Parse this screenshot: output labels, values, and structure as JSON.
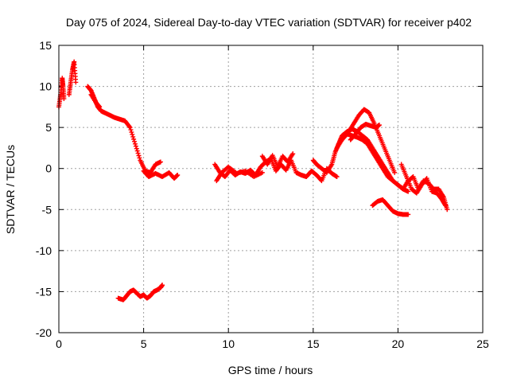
{
  "chart_data": {
    "type": "scatter",
    "title": "Day 075 of 2024, Sidereal Day-to-day VTEC variation (SDTVAR) for receiver p402",
    "xlabel": "GPS time / hours",
    "ylabel": "SDTVAR / TECUs",
    "xlim": [
      0,
      25
    ],
    "ylim": [
      -20,
      15
    ],
    "xticks": [
      0,
      5,
      10,
      15,
      20,
      25
    ],
    "xtick_labels": [
      "0",
      "5",
      "10",
      "15",
      "20",
      "25"
    ],
    "yticks": [
      -20,
      -15,
      -10,
      -5,
      0,
      5,
      10,
      15
    ],
    "ytick_labels": [
      "-20",
      "-15",
      "-10",
      "-5",
      "0",
      "5",
      "10",
      "15"
    ],
    "grid": true,
    "marker": "+",
    "series": [
      {
        "name": "SDTVAR",
        "color": "#ff0000",
        "tracks": [
          {
            "x": [
              0.0,
              0.1,
              0.2,
              0.25,
              0.3
            ],
            "y": [
              7.5,
              9.0,
              11.0,
              10.0,
              8.5
            ]
          },
          {
            "x": [
              0.6,
              0.7,
              0.8,
              0.9,
              1.0
            ],
            "y": [
              9.0,
              10.5,
              12.0,
              13.0,
              10.5
            ]
          },
          {
            "x": [
              1.7,
              1.9,
              2.1,
              2.3,
              2.5,
              2.7,
              3.0,
              3.3,
              3.6,
              3.9,
              4.2,
              4.5,
              4.8,
              5.1,
              5.4,
              5.7,
              6.0
            ],
            "y": [
              10.0,
              9.5,
              8.5,
              7.5,
              7.0,
              6.8,
              6.5,
              6.2,
              6.0,
              5.8,
              5.0,
              3.0,
              1.0,
              -0.3,
              -0.5,
              0.5,
              0.8
            ]
          },
          {
            "x": [
              1.9,
              2.2,
              2.4
            ],
            "y": [
              9.0,
              8.0,
              7.5
            ]
          },
          {
            "x": [
              5.0,
              5.3,
              5.7,
              6.1,
              6.5,
              6.8,
              7.0
            ],
            "y": [
              -0.3,
              -1.0,
              -0.6,
              -1.0,
              -0.5,
              -1.2,
              -0.8
            ]
          },
          {
            "x": [
              3.5,
              3.8,
              4.0,
              4.2,
              4.4,
              4.6,
              4.8,
              5.0,
              5.2,
              5.4,
              5.6,
              5.8,
              6.0,
              6.1
            ],
            "y": [
              -15.8,
              -16.0,
              -15.5,
              -15.0,
              -14.8,
              -15.2,
              -15.6,
              -15.4,
              -15.8,
              -15.5,
              -15.0,
              -14.8,
              -14.5,
              -14.2
            ]
          },
          {
            "x": [
              9.2,
              9.5,
              9.8,
              10.1,
              10.4,
              10.7,
              11.0,
              11.3,
              11.6,
              11.9,
              12.2,
              12.5,
              12.8,
              13.1,
              13.4,
              13.7,
              14.0,
              14.3,
              14.6,
              14.9,
              15.2,
              15.5,
              15.8,
              16.1,
              16.4
            ],
            "y": [
              0.5,
              -0.5,
              -1.0,
              -0.2,
              -0.8,
              -0.4,
              -0.6,
              -0.2,
              -0.8,
              0.2,
              0.8,
              1.2,
              -0.3,
              0.5,
              -0.2,
              1.0,
              -0.5,
              -0.8,
              -1.0,
              -0.3,
              -0.8,
              -1.5,
              0.0,
              -0.6,
              -1.0
            ]
          },
          {
            "x": [
              9.3,
              9.6,
              10.0,
              10.5,
              11.0,
              11.5,
              12.0
            ],
            "y": [
              -1.5,
              -0.5,
              0.2,
              -0.6,
              -0.3,
              -1.0,
              -0.5
            ]
          },
          {
            "x": [
              12.0,
              12.3,
              12.6,
              12.9,
              13.2,
              13.5,
              13.8
            ],
            "y": [
              1.5,
              0.5,
              1.6,
              0.2,
              1.5,
              0.8,
              1.8
            ]
          },
          {
            "x": [
              15.0,
              15.2,
              15.5,
              15.8,
              16.1,
              16.3,
              16.5,
              16.7,
              17.0,
              17.3,
              17.6,
              17.9,
              18.2,
              18.5,
              18.8,
              19.1,
              19.4,
              19.7,
              20.0,
              20.3,
              20.6
            ],
            "y": [
              1.0,
              0.5,
              0.0,
              -0.5,
              0.5,
              2.0,
              3.0,
              4.0,
              4.5,
              4.8,
              4.5,
              4.0,
              3.5,
              2.5,
              1.5,
              0.5,
              -0.5,
              -1.5,
              -2.0,
              -2.5,
              -2.8
            ]
          },
          {
            "x": [
              16.4,
              16.7,
              17.0,
              17.3,
              17.6,
              17.9,
              18.2,
              18.5,
              18.8,
              19.1,
              19.4,
              19.7,
              20.0,
              20.3
            ],
            "y": [
              2.5,
              3.5,
              4.2,
              4.0,
              3.8,
              3.5,
              3.0,
              2.0,
              1.0,
              0.0,
              -1.0,
              -1.5,
              -2.0,
              -2.5
            ]
          },
          {
            "x": [
              16.5,
              16.8,
              17.1,
              17.4,
              17.7,
              18.0,
              18.3,
              18.6,
              18.9,
              19.2,
              19.5,
              19.8
            ],
            "y": [
              3.0,
              3.8,
              4.5,
              5.5,
              6.5,
              7.2,
              6.8,
              5.5,
              4.0,
              2.5,
              1.0,
              -0.5
            ]
          },
          {
            "x": [
              17.2,
              17.5,
              17.8,
              18.1,
              18.4,
              18.7,
              18.9
            ],
            "y": [
              3.5,
              4.2,
              5.0,
              5.4,
              5.2,
              5.0,
              5.3
            ]
          },
          {
            "x": [
              18.5,
              18.8,
              19.1,
              19.4,
              19.7,
              20.0,
              20.3,
              20.6
            ],
            "y": [
              -4.5,
              -4.0,
              -3.8,
              -4.5,
              -5.2,
              -5.5,
              -5.6,
              -5.6
            ]
          },
          {
            "x": [
              20.0,
              20.3,
              20.6,
              20.9,
              21.2,
              21.5,
              21.8,
              22.1,
              22.4,
              22.7,
              22.9
            ],
            "y": [
              -2.0,
              -2.5,
              -1.5,
              -1.0,
              -2.5,
              -1.5,
              -1.8,
              -2.5,
              -2.5,
              -3.5,
              -5.0
            ]
          },
          {
            "x": [
              20.2,
              20.5,
              20.8,
              21.1,
              21.4,
              21.7,
              22.0,
              22.3,
              22.6,
              22.8
            ],
            "y": [
              0.5,
              -1.0,
              -2.5,
              -3.0,
              -2.0,
              -1.2,
              -2.8,
              -3.0,
              -3.8,
              -4.5
            ]
          }
        ]
      }
    ]
  }
}
